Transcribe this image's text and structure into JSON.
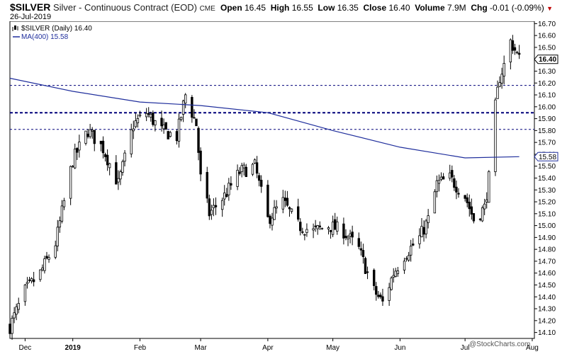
{
  "header": {
    "symbol": "$SILVER",
    "description": "Silver - Continuous Contract (EOD)",
    "exchange": "CME",
    "date": "26-Jul-2019",
    "open_label": "Open",
    "open": "16.45",
    "high_label": "High",
    "high": "16.55",
    "low_label": "Low",
    "low": "16.35",
    "close_label": "Close",
    "close": "16.40",
    "volume_label": "Volume",
    "volume": "7.9M",
    "chg_label": "Chg",
    "chg": "-0.01 (-0.09%)"
  },
  "watermark": "@StockCharts.com",
  "legend": {
    "price": "$SILVER (Daily) 16.40",
    "ma": "MA(400) 15.58"
  },
  "colors": {
    "price_legend": "#000000",
    "ma_line": "#1f2e9c",
    "ref_line": "#00007a",
    "down_arrow": "#c00000",
    "candle": "#000000"
  },
  "chart_data": {
    "type": "candlestick",
    "ylim": [
      14.05,
      16.72
    ],
    "yticks": [
      14.1,
      14.2,
      14.3,
      14.4,
      14.5,
      14.6,
      14.7,
      14.8,
      14.9,
      15.0,
      15.1,
      15.2,
      15.3,
      15.4,
      15.5,
      15.6,
      15.7,
      15.8,
      15.9,
      16.0,
      16.1,
      16.2,
      16.3,
      16.4,
      16.5,
      16.6,
      16.7
    ],
    "x_start": "2018-12-03",
    "x_end": "2019-08-02",
    "xticks": [
      {
        "date": "2018-12-10",
        "label": "Dec",
        "bold": false
      },
      {
        "date": "2019-01-01",
        "label": "2019",
        "bold": true
      },
      {
        "date": "2019-02-01",
        "label": "Feb",
        "bold": false
      },
      {
        "date": "2019-03-01",
        "label": "Mar",
        "bold": false
      },
      {
        "date": "2019-04-01",
        "label": "Apr",
        "bold": false
      },
      {
        "date": "2019-05-01",
        "label": "May",
        "bold": false
      },
      {
        "date": "2019-06-01",
        "label": "Jun",
        "bold": false
      },
      {
        "date": "2019-07-01",
        "label": "Jul",
        "bold": false
      },
      {
        "date": "2019-08-01",
        "label": "Aug",
        "bold": false
      }
    ],
    "hlines": [
      {
        "y": 16.18,
        "style": "dashed",
        "weight": 1
      },
      {
        "y": 15.95,
        "style": "dashed",
        "weight": 2
      },
      {
        "y": 15.81,
        "style": "dashed",
        "weight": 1
      }
    ],
    "price_labels": [
      {
        "y": 16.4,
        "text": "16.40",
        "style": "price"
      },
      {
        "y": 15.58,
        "text": "15.58",
        "style": "ma"
      }
    ],
    "ma400": [
      {
        "date": "2018-12-03",
        "v": 16.24
      },
      {
        "date": "2019-01-01",
        "v": 16.13
      },
      {
        "date": "2019-02-01",
        "v": 16.04
      },
      {
        "date": "2019-03-01",
        "v": 16.01
      },
      {
        "date": "2019-04-01",
        "v": 15.95
      },
      {
        "date": "2019-05-01",
        "v": 15.8
      },
      {
        "date": "2019-06-01",
        "v": 15.66
      },
      {
        "date": "2019-07-01",
        "v": 15.57
      },
      {
        "date": "2019-07-26",
        "v": 15.58
      }
    ],
    "anchors": [
      {
        "date": "2018-12-03",
        "v": 14.15
      },
      {
        "date": "2018-12-10",
        "v": 14.45
      },
      {
        "date": "2018-12-17",
        "v": 14.6
      },
      {
        "date": "2018-12-24",
        "v": 14.85
      },
      {
        "date": "2019-01-01",
        "v": 15.55
      },
      {
        "date": "2019-01-08",
        "v": 15.8
      },
      {
        "date": "2019-01-15",
        "v": 15.65
      },
      {
        "date": "2019-01-22",
        "v": 15.35
      },
      {
        "date": "2019-01-29",
        "v": 15.85
      },
      {
        "date": "2019-02-04",
        "v": 15.95
      },
      {
        "date": "2019-02-11",
        "v": 15.8
      },
      {
        "date": "2019-02-18",
        "v": 15.75
      },
      {
        "date": "2019-02-22",
        "v": 16.1
      },
      {
        "date": "2019-02-27",
        "v": 15.85
      },
      {
        "date": "2019-03-01",
        "v": 15.4
      },
      {
        "date": "2019-03-05",
        "v": 15.1
      },
      {
        "date": "2019-03-12",
        "v": 15.25
      },
      {
        "date": "2019-03-19",
        "v": 15.45
      },
      {
        "date": "2019-03-26",
        "v": 15.5
      },
      {
        "date": "2019-04-01",
        "v": 15.05
      },
      {
        "date": "2019-04-08",
        "v": 15.2
      },
      {
        "date": "2019-04-15",
        "v": 15.0
      },
      {
        "date": "2019-04-22",
        "v": 14.95
      },
      {
        "date": "2019-04-29",
        "v": 15.0
      },
      {
        "date": "2019-05-06",
        "v": 14.95
      },
      {
        "date": "2019-05-13",
        "v": 14.8
      },
      {
        "date": "2019-05-20",
        "v": 14.45
      },
      {
        "date": "2019-05-24",
        "v": 14.35
      },
      {
        "date": "2019-05-29",
        "v": 14.6
      },
      {
        "date": "2019-06-03",
        "v": 14.75
      },
      {
        "date": "2019-06-10",
        "v": 14.9
      },
      {
        "date": "2019-06-14",
        "v": 15.05
      },
      {
        "date": "2019-06-18",
        "v": 15.35
      },
      {
        "date": "2019-06-24",
        "v": 15.4
      },
      {
        "date": "2019-07-01",
        "v": 15.25
      },
      {
        "date": "2019-07-05",
        "v": 15.05
      },
      {
        "date": "2019-07-10",
        "v": 15.15
      },
      {
        "date": "2019-07-12",
        "v": 15.4
      },
      {
        "date": "2019-07-15",
        "v": 16.0
      },
      {
        "date": "2019-07-17",
        "v": 16.25
      },
      {
        "date": "2019-07-19",
        "v": 16.35
      },
      {
        "date": "2019-07-22",
        "v": 16.55
      },
      {
        "date": "2019-07-24",
        "v": 16.48
      },
      {
        "date": "2019-07-26",
        "v": 16.4
      }
    ]
  }
}
